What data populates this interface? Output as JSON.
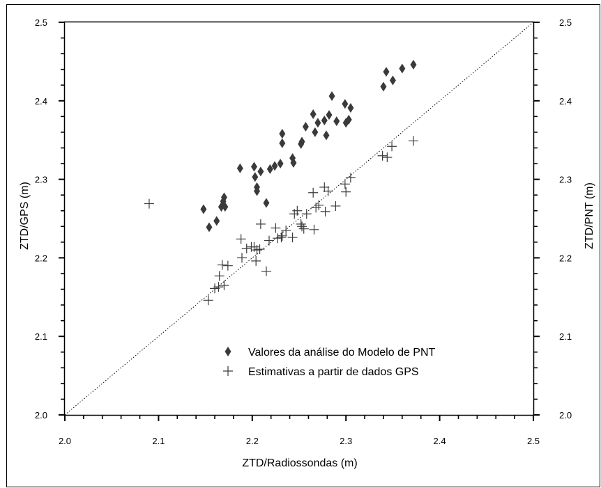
{
  "chart_data": {
    "type": "scatter",
    "xlabel": "ZTD/Radiossondas (m)",
    "ylabel_left": "ZTD/GPS (m)",
    "ylabel_right": "ZTD/PNT (m)",
    "xlim": [
      2.0,
      2.5
    ],
    "ylim": [
      2.0,
      2.5
    ],
    "x_ticks": [
      "2.0",
      "2.1",
      "2.2",
      "2.3",
      "2.4",
      "2.5"
    ],
    "y_ticks": [
      "2.0",
      "2.1",
      "2.2",
      "2.3",
      "2.4",
      "2.5"
    ],
    "reference_line": "y = x (dotted)",
    "grid": false,
    "legend_position": "lower-right",
    "series": [
      {
        "name": "Valores da análise do Modelo de PNT",
        "marker": "diamond",
        "color": "#3a3a3a",
        "points": [
          [
            2.148,
            2.262
          ],
          [
            2.154,
            2.239
          ],
          [
            2.162,
            2.247
          ],
          [
            2.167,
            2.265
          ],
          [
            2.169,
            2.272
          ],
          [
            2.17,
            2.277
          ],
          [
            2.171,
            2.265
          ],
          [
            2.187,
            2.314
          ],
          [
            2.202,
            2.316
          ],
          [
            2.203,
            2.303
          ],
          [
            2.205,
            2.29
          ],
          [
            2.205,
            2.285
          ],
          [
            2.209,
            2.31
          ],
          [
            2.215,
            2.27
          ],
          [
            2.219,
            2.313
          ],
          [
            2.224,
            2.317
          ],
          [
            2.23,
            2.32
          ],
          [
            2.232,
            2.358
          ],
          [
            2.232,
            2.346
          ],
          [
            2.243,
            2.327
          ],
          [
            2.244,
            2.321
          ],
          [
            2.252,
            2.345
          ],
          [
            2.253,
            2.348
          ],
          [
            2.257,
            2.367
          ],
          [
            2.265,
            2.383
          ],
          [
            2.267,
            2.36
          ],
          [
            2.27,
            2.372
          ],
          [
            2.277,
            2.375
          ],
          [
            2.279,
            2.356
          ],
          [
            2.282,
            2.382
          ],
          [
            2.285,
            2.406
          ],
          [
            2.29,
            2.374
          ],
          [
            2.299,
            2.396
          ],
          [
            2.3,
            2.372
          ],
          [
            2.303,
            2.376
          ],
          [
            2.305,
            2.391
          ],
          [
            2.34,
            2.418
          ],
          [
            2.343,
            2.437
          ],
          [
            2.35,
            2.426
          ],
          [
            2.36,
            2.441
          ],
          [
            2.372,
            2.446
          ]
        ]
      },
      {
        "name": "Estimativas a partir de dados GPS",
        "marker": "plus",
        "color": "#3a3a3a",
        "points": [
          [
            2.09,
            2.269
          ],
          [
            2.153,
            2.146
          ],
          [
            2.16,
            2.161
          ],
          [
            2.164,
            2.163
          ],
          [
            2.165,
            2.177
          ],
          [
            2.168,
            2.191
          ],
          [
            2.17,
            2.165
          ],
          [
            2.174,
            2.19
          ],
          [
            2.188,
            2.224
          ],
          [
            2.189,
            2.2
          ],
          [
            2.194,
            2.212
          ],
          [
            2.199,
            2.214
          ],
          [
            2.202,
            2.214
          ],
          [
            2.204,
            2.196
          ],
          [
            2.205,
            2.21
          ],
          [
            2.208,
            2.211
          ],
          [
            2.209,
            2.243
          ],
          [
            2.215,
            2.183
          ],
          [
            2.218,
            2.222
          ],
          [
            2.225,
            2.238
          ],
          [
            2.227,
            2.225
          ],
          [
            2.231,
            2.226
          ],
          [
            2.232,
            2.228
          ],
          [
            2.236,
            2.235
          ],
          [
            2.243,
            2.226
          ],
          [
            2.245,
            2.256
          ],
          [
            2.248,
            2.26
          ],
          [
            2.252,
            2.243
          ],
          [
            2.253,
            2.24
          ],
          [
            2.255,
            2.237
          ],
          [
            2.258,
            2.256
          ],
          [
            2.265,
            2.283
          ],
          [
            2.266,
            2.236
          ],
          [
            2.268,
            2.264
          ],
          [
            2.271,
            2.267
          ],
          [
            2.277,
            2.29
          ],
          [
            2.278,
            2.259
          ],
          [
            2.281,
            2.285
          ],
          [
            2.289,
            2.266
          ],
          [
            2.299,
            2.294
          ],
          [
            2.3,
            2.284
          ],
          [
            2.305,
            2.302
          ],
          [
            2.339,
            2.33
          ],
          [
            2.344,
            2.328
          ],
          [
            2.349,
            2.342
          ],
          [
            2.372,
            2.349
          ]
        ]
      }
    ]
  }
}
